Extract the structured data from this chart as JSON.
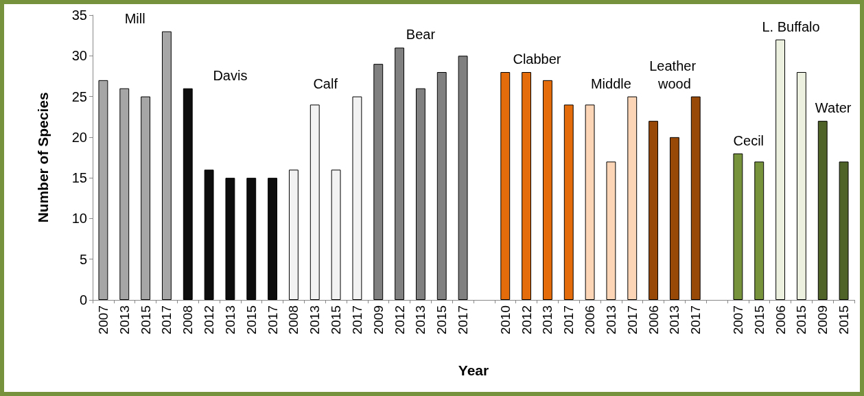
{
  "chart_data": {
    "type": "bar",
    "stacked": true,
    "xlabel": "Year",
    "ylabel": "Number of Species",
    "ylim": [
      0,
      35
    ],
    "yticks": [
      0,
      5,
      10,
      15,
      20,
      25,
      30,
      35
    ],
    "grid": false,
    "legend": false,
    "categories": [
      "2007",
      "2013",
      "2015",
      "2017",
      "2008",
      "2012",
      "2013",
      "2015",
      "2017",
      "2008",
      "2013",
      "2015",
      "2017",
      "2009",
      "2012",
      "2013",
      "2015",
      "2017",
      null,
      "2010",
      "2012",
      "2013",
      "2017",
      "2006",
      "2013",
      "2017",
      "2006",
      "2013",
      "2017",
      null,
      "2007",
      "2015",
      "2006",
      "2015",
      "2009",
      "2015"
    ],
    "series": [
      {
        "name": "Mill",
        "color": "#a6a6a6",
        "values": [
          27,
          26,
          25,
          33,
          null,
          null,
          null,
          null,
          null,
          null,
          null,
          null,
          null,
          null,
          null,
          null,
          null,
          null,
          null,
          null,
          null,
          null,
          null,
          null,
          null,
          null,
          null,
          null,
          null,
          null,
          null,
          null,
          null,
          null,
          null,
          null
        ]
      },
      {
        "name": "Davis",
        "color": "#0d0d0d",
        "values": [
          null,
          null,
          null,
          null,
          26,
          16,
          15,
          15,
          15,
          null,
          null,
          null,
          null,
          null,
          null,
          null,
          null,
          null,
          null,
          null,
          null,
          null,
          null,
          null,
          null,
          null,
          null,
          null,
          null,
          null,
          null,
          null,
          null,
          null,
          null,
          null
        ]
      },
      {
        "name": "Calf",
        "color": "#f2f2f2",
        "values": [
          null,
          null,
          null,
          null,
          null,
          null,
          null,
          null,
          null,
          16,
          24,
          16,
          25,
          null,
          null,
          null,
          null,
          null,
          null,
          null,
          null,
          null,
          null,
          null,
          null,
          null,
          null,
          null,
          null,
          null,
          null,
          null,
          null,
          null,
          null,
          null
        ]
      },
      {
        "name": "Bear",
        "color": "#808080",
        "values": [
          null,
          null,
          null,
          null,
          null,
          null,
          null,
          null,
          null,
          null,
          null,
          null,
          null,
          29,
          31,
          26,
          28,
          30,
          null,
          null,
          null,
          null,
          null,
          null,
          null,
          null,
          null,
          null,
          null,
          null,
          null,
          null,
          null,
          null,
          null,
          null
        ]
      },
      {
        "name": "Clabber",
        "color": "#e46c0a",
        "values": [
          null,
          null,
          null,
          null,
          null,
          null,
          null,
          null,
          null,
          null,
          null,
          null,
          null,
          null,
          null,
          null,
          null,
          null,
          null,
          28,
          28,
          27,
          24,
          null,
          null,
          null,
          null,
          null,
          null,
          null,
          null,
          null,
          null,
          null,
          null,
          null
        ]
      },
      {
        "name": "Middle",
        "color": "#fbd5b5",
        "values": [
          null,
          null,
          null,
          null,
          null,
          null,
          null,
          null,
          null,
          null,
          null,
          null,
          null,
          null,
          null,
          null,
          null,
          null,
          null,
          null,
          null,
          null,
          null,
          24,
          17,
          25,
          null,
          null,
          null,
          null,
          null,
          null,
          null,
          null,
          null,
          null
        ]
      },
      {
        "name": "Leather wood",
        "color": "#984807",
        "values": [
          null,
          null,
          null,
          null,
          null,
          null,
          null,
          null,
          null,
          null,
          null,
          null,
          null,
          null,
          null,
          null,
          null,
          null,
          null,
          null,
          null,
          null,
          null,
          null,
          null,
          null,
          22,
          20,
          25,
          null,
          null,
          null,
          null,
          null,
          null,
          null
        ]
      },
      {
        "name": "Cecil",
        "color": "#77933c",
        "values": [
          null,
          null,
          null,
          null,
          null,
          null,
          null,
          null,
          null,
          null,
          null,
          null,
          null,
          null,
          null,
          null,
          null,
          null,
          null,
          null,
          null,
          null,
          null,
          null,
          null,
          null,
          null,
          null,
          null,
          null,
          18,
          17,
          null,
          null,
          null,
          null
        ]
      },
      {
        "name": "L. Buffalo",
        "color": "#ebf1de",
        "values": [
          null,
          null,
          null,
          null,
          null,
          null,
          null,
          null,
          null,
          null,
          null,
          null,
          null,
          null,
          null,
          null,
          null,
          null,
          null,
          null,
          null,
          null,
          null,
          null,
          null,
          null,
          null,
          null,
          null,
          null,
          null,
          null,
          32,
          28,
          null,
          null
        ]
      },
      {
        "name": "Water",
        "color": "#4f6228",
        "values": [
          null,
          null,
          null,
          null,
          null,
          null,
          null,
          null,
          null,
          null,
          null,
          null,
          null,
          null,
          null,
          null,
          null,
          null,
          null,
          null,
          null,
          null,
          null,
          null,
          null,
          null,
          null,
          null,
          null,
          null,
          null,
          null,
          null,
          null,
          22,
          17
        ]
      }
    ]
  }
}
